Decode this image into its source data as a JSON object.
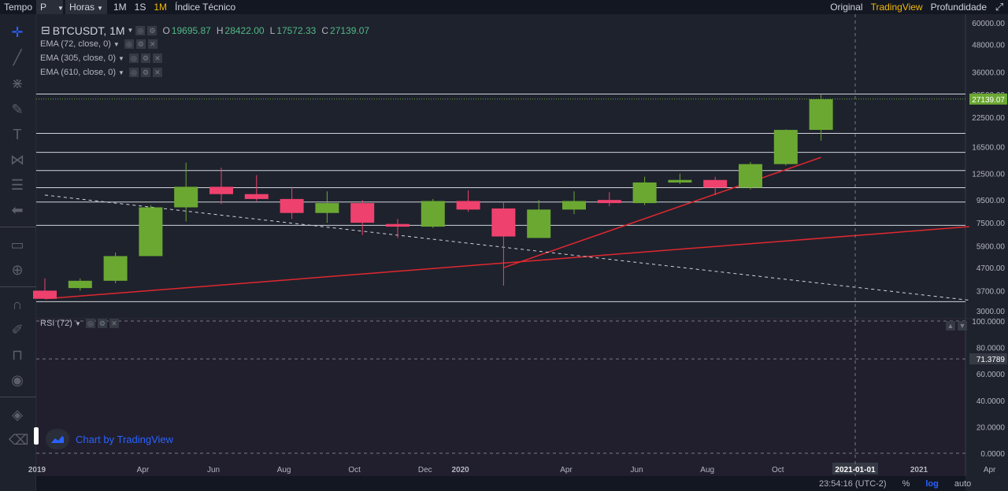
{
  "toolbar": {
    "tempo": "Tempo",
    "symbol_select": "P",
    "interval_select": "Horas",
    "intervals": [
      "1M",
      "1S",
      "1M"
    ],
    "active_interval_index": 2,
    "indicators": "Índice Técnico",
    "views": [
      "Original",
      "TradingView",
      "Profundidade"
    ],
    "active_view_index": 1
  },
  "legend": {
    "symbol": "BTCUSDT, 1M",
    "open_k": "O",
    "open": "19695.87",
    "high_k": "H",
    "high": "28422.00",
    "low_k": "L",
    "low": "17572.33",
    "close_k": "C",
    "close": "27139.07",
    "studies": [
      "EMA (72, close, 0)",
      "EMA (305, close, 0)",
      "EMA (610, close, 0)"
    ],
    "rsi": "RSI (72)"
  },
  "watermark": "Chart by TradingView",
  "statusbar": {
    "time": "23:54:16 (UTC-2)",
    "percent": "%",
    "log": "log",
    "auto": "auto"
  },
  "colors": {
    "up": "#6ba832",
    "down": "#ef416d",
    "trend": "#e0282e",
    "accent": "#f0b90b"
  },
  "chart_data": [
    {
      "type": "candlestick",
      "title": "BTCUSDT, 1M",
      "scale": "log",
      "ylim": [
        3000,
        60000
      ],
      "y_ticks": [
        3000,
        3700,
        4700,
        5900,
        7500,
        9500,
        12500,
        16500,
        22500,
        28500,
        36000,
        48000,
        60000
      ],
      "y_tick_labels": [
        "3000.00",
        "3700.00",
        "4700.00",
        "5900.00",
        "7500.00",
        "9500.00",
        "12500.00",
        "16500.00",
        "22500.00",
        "28500.00",
        "36000.00",
        "48000.00",
        "60000.00"
      ],
      "x_labels": [
        "2019",
        "Apr",
        "Jun",
        "Aug",
        "Oct",
        "Dec",
        "2020",
        "Apr",
        "Jun",
        "Aug",
        "Oct",
        "Dec",
        "2021-01-01",
        "2021",
        "Apr"
      ],
      "x_label_months": [
        0,
        3,
        5,
        7,
        9,
        11,
        12,
        15,
        17,
        19,
        21,
        23,
        24.5,
        25,
        27
      ],
      "highlight_x_label_index": 12,
      "current_price": 27139.07,
      "current_price_label": "27139.07",
      "candles": [
        {
          "m": 0,
          "o": 3700,
          "h": 4200,
          "l": 3400,
          "c": 3400
        },
        {
          "m": 1,
          "o": 3800,
          "h": 4200,
          "l": 3700,
          "c": 4100
        },
        {
          "m": 2,
          "o": 4100,
          "h": 5500,
          "l": 4000,
          "c": 5300
        },
        {
          "m": 3,
          "o": 5300,
          "h": 9000,
          "l": 5300,
          "c": 8800
        },
        {
          "m": 4,
          "o": 8800,
          "h": 14000,
          "l": 7600,
          "c": 10900
        },
        {
          "m": 5,
          "o": 10900,
          "h": 13300,
          "l": 9100,
          "c": 10100
        },
        {
          "m": 6,
          "o": 10100,
          "h": 12300,
          "l": 9400,
          "c": 9600
        },
        {
          "m": 7,
          "o": 9600,
          "h": 10900,
          "l": 7800,
          "c": 8300
        },
        {
          "m": 8,
          "o": 8300,
          "h": 10400,
          "l": 7500,
          "c": 9200
        },
        {
          "m": 9,
          "o": 9200,
          "h": 9500,
          "l": 6600,
          "c": 7500
        },
        {
          "m": 10,
          "o": 7400,
          "h": 7800,
          "l": 6400,
          "c": 7200
        },
        {
          "m": 11,
          "o": 7200,
          "h": 9600,
          "l": 7100,
          "c": 9400
        },
        {
          "m": 12,
          "o": 9400,
          "h": 10500,
          "l": 8400,
          "c": 8600
        },
        {
          "m": 13,
          "o": 8700,
          "h": 9300,
          "l": 3900,
          "c": 6500
        },
        {
          "m": 14,
          "o": 6400,
          "h": 9500,
          "l": 6400,
          "c": 8600
        },
        {
          "m": 15,
          "o": 8600,
          "h": 10400,
          "l": 8200,
          "c": 9400
        },
        {
          "m": 16,
          "o": 9500,
          "h": 10300,
          "l": 8900,
          "c": 9200
        },
        {
          "m": 17,
          "o": 9200,
          "h": 12100,
          "l": 9000,
          "c": 11400
        },
        {
          "m": 18,
          "o": 11400,
          "h": 12500,
          "l": 11200,
          "c": 11700
        },
        {
          "m": 19,
          "o": 11700,
          "h": 12100,
          "l": 10000,
          "c": 10800
        },
        {
          "m": 20,
          "o": 10800,
          "h": 14100,
          "l": 10600,
          "c": 13800
        },
        {
          "m": 21,
          "o": 13800,
          "h": 19800,
          "l": 13600,
          "c": 19700
        },
        {
          "m": 22,
          "o": 19700,
          "h": 28400,
          "l": 17600,
          "c": 27100
        }
      ],
      "horizontal_lines": [
        3300,
        7300,
        9300,
        10800,
        12900,
        15600,
        19000,
        28600
      ],
      "trend_lines": [
        {
          "style": "solid",
          "from": [
            0,
            3400
          ],
          "to": [
            26.2,
            7200
          ]
        },
        {
          "style": "solid",
          "from": [
            13,
            4700
          ],
          "to": [
            22,
            14800
          ]
        },
        {
          "style": "dashed",
          "from": [
            0,
            10000
          ],
          "to": [
            26.2,
            3350
          ]
        }
      ]
    },
    {
      "type": "line",
      "title": "RSI (72)",
      "ylim": [
        0,
        100
      ],
      "y_ticks": [
        0,
        20,
        40,
        60,
        80,
        100
      ],
      "y_tick_labels": [
        "0.0000",
        "20.0000",
        "40.0000",
        "60.0000",
        "80.0000",
        "100.0000"
      ],
      "bands": [
        0,
        71.3789,
        100
      ],
      "current_value": 71.3789,
      "current_value_label": "71.3789"
    }
  ]
}
